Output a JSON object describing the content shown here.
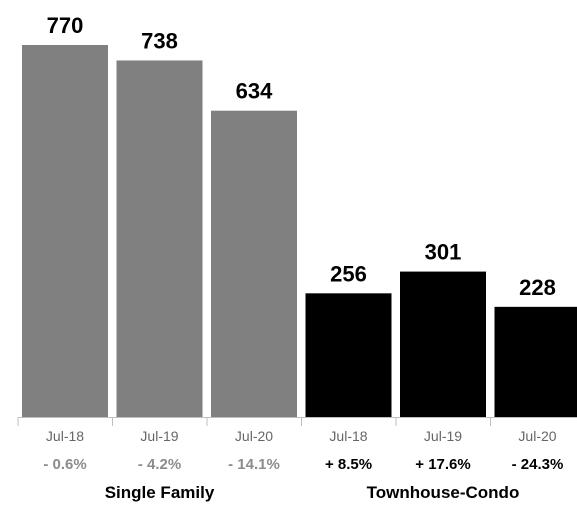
{
  "chart_data": {
    "type": "bar",
    "categories": [
      "Jul-18",
      "Jul-19",
      "Jul-20",
      "Jul-18",
      "Jul-19",
      "Jul-20"
    ],
    "values": [
      770,
      738,
      634,
      256,
      301,
      228
    ],
    "changes": [
      "- 0.6%",
      "- 4.2%",
      "- 14.1%",
      "+ 8.5%",
      "+ 17.6%",
      "- 24.3%"
    ],
    "groups": [
      {
        "name": "Single Family",
        "color": "#808080",
        "change_color": "#8c8c8c"
      },
      {
        "name": "Townhouse-Condo",
        "color": "#000000",
        "change_color": "#000000"
      }
    ],
    "group_index": [
      0,
      0,
      0,
      1,
      1,
      1
    ],
    "ylim": [
      0,
      770
    ],
    "grid": false,
    "axis_color": "#bfbfbf"
  }
}
